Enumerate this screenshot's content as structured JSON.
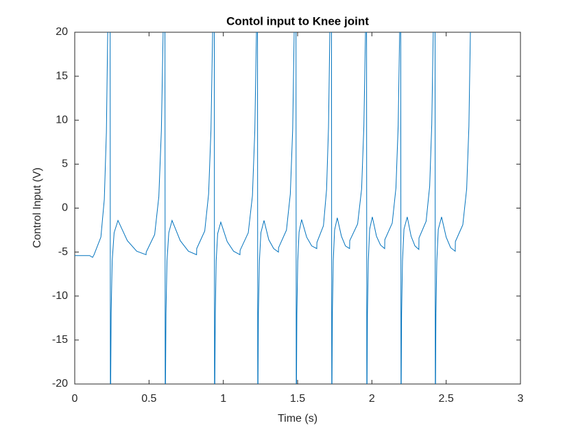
{
  "chart_data": {
    "type": "line",
    "title": "Contol input to Knee joint",
    "x_label": "Time (s)",
    "y_label": "Control Input (V)",
    "xlim": [
      0,
      3
    ],
    "ylim": [
      -20,
      20
    ],
    "xticks": [
      0,
      0.5,
      1,
      1.5,
      2,
      2.5,
      3
    ],
    "yticks": [
      -20,
      -15,
      -10,
      -5,
      0,
      5,
      10,
      15,
      20
    ],
    "grid": false,
    "series": [
      {
        "color": "#0072bd",
        "x": [
          0,
          0.1,
          0.12,
          0.13,
          0.176,
          0.199,
          0.213,
          0.222,
          0.226,
          0.238,
          0.24,
          0.245,
          0.252,
          0.265,
          0.291,
          0.354,
          0.417,
          0.48,
          0.481,
          0.538,
          0.566,
          0.583,
          0.595,
          0.6,
          0.607,
          0.609,
          0.614,
          0.621,
          0.633,
          0.655,
          0.71,
          0.765,
          0.82,
          0.821,
          0.875,
          0.901,
          0.917,
          0.928,
          0.932,
          0.939,
          0.941,
          0.946,
          0.952,
          0.962,
          0.983,
          1.026,
          1.069,
          1.112,
          1.113,
          1.168,
          1.196,
          1.212,
          1.223,
          1.226,
          1.23,
          1.232,
          1.236,
          1.243,
          1.253,
          1.274,
          1.306,
          1.339,
          1.371,
          1.372,
          1.425,
          1.451,
          1.467,
          1.477,
          1.48,
          1.489,
          1.491,
          1.495,
          1.501,
          1.51,
          1.527,
          1.561,
          1.595,
          1.629,
          1.63,
          1.674,
          1.695,
          1.708,
          1.717,
          1.72,
          1.728,
          1.73,
          1.734,
          1.74,
          1.749,
          1.767,
          1.795,
          1.822,
          1.85,
          1.851,
          1.904,
          1.931,
          1.946,
          1.957,
          1.96,
          1.964,
          1.966,
          1.97,
          1.976,
          1.985,
          2.003,
          2.031,
          2.058,
          2.086,
          2.087,
          2.137,
          2.162,
          2.177,
          2.187,
          2.19,
          2.194,
          2.196,
          2.2,
          2.206,
          2.216,
          2.238,
          2.264,
          2.29,
          2.316,
          2.317,
          2.365,
          2.389,
          2.403,
          2.413,
          2.416,
          2.425,
          2.427,
          2.431,
          2.437,
          2.447,
          2.469,
          2.5,
          2.53,
          2.561,
          2.562,
          2.612,
          2.638,
          2.653,
          2.663,
          2.666
        ],
        "values": [
          -5.4,
          -5.4,
          -5.6,
          -5.3,
          -3.3,
          1.0,
          8.6,
          20,
          25,
          25,
          -25,
          -12,
          -6,
          -2.8,
          -1.4,
          -3.7,
          -4.9,
          -5.3,
          -5.0,
          -3.0,
          1.3,
          8.8,
          20,
          25,
          25,
          -25,
          -12,
          -6,
          -2.8,
          -1.4,
          -3.7,
          -4.9,
          -5.3,
          -4.6,
          -2.6,
          1.6,
          8.9,
          20,
          25,
          25,
          -25,
          -12,
          -6,
          -2.9,
          -1.6,
          -3.8,
          -4.9,
          -5.3,
          -4.8,
          -2.8,
          1.4,
          8.8,
          20,
          25,
          25,
          -25,
          -12,
          -6,
          -2.8,
          -1.4,
          -3.6,
          -4.6,
          -5.0,
          -4.5,
          -2.5,
          1.6,
          9.0,
          20,
          25,
          25,
          -25,
          -12,
          -6,
          -2.7,
          -1.3,
          -3.3,
          -4.3,
          -4.6,
          -3.9,
          -2.0,
          2.1,
          9.2,
          20,
          25,
          25,
          -25,
          -12,
          -6,
          -2.5,
          -1.1,
          -3.2,
          -4.3,
          -4.6,
          -3.7,
          -1.8,
          2.2,
          9.3,
          20,
          25,
          25,
          -25,
          -12,
          -6,
          -2.4,
          -1.0,
          -3.2,
          -4.2,
          -4.6,
          -3.6,
          -1.7,
          2.3,
          9.4,
          20,
          25,
          25,
          -25,
          -12,
          -6,
          -2.4,
          -1.0,
          -3.2,
          -4.3,
          -4.7,
          -3.4,
          -1.5,
          2.5,
          9.5,
          20,
          25,
          25,
          -25,
          -12,
          -6,
          -2.4,
          -1.0,
          -3.3,
          -4.5,
          -4.9,
          -3.8,
          -1.9,
          2.2,
          9.3,
          20,
          25
        ]
      }
    ]
  }
}
